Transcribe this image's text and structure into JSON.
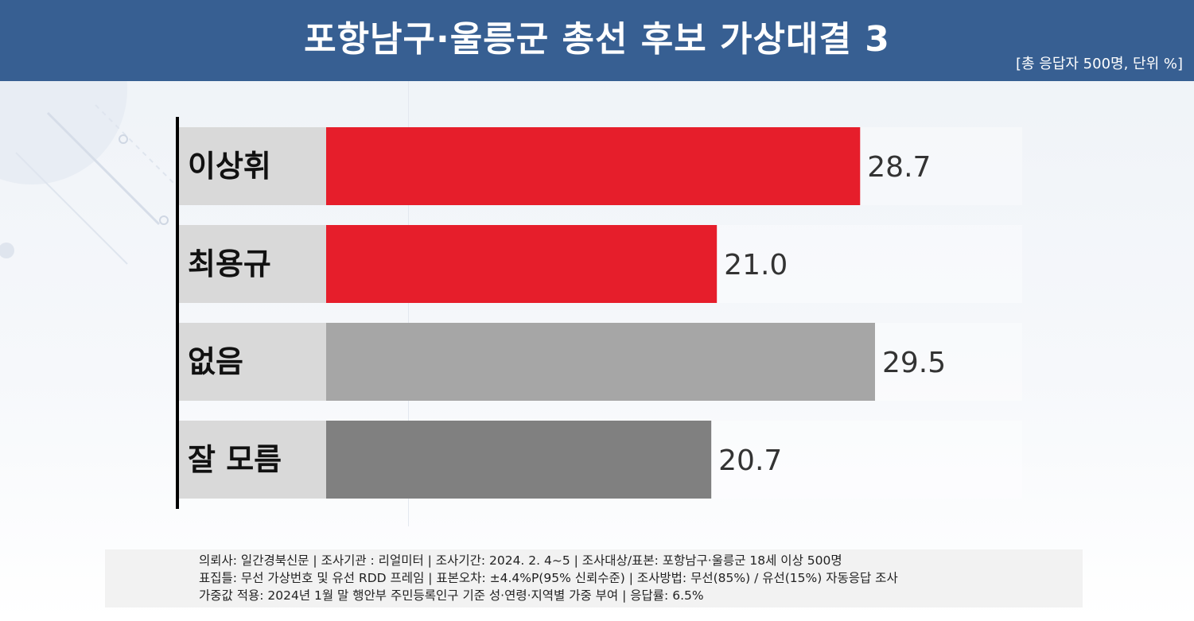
{
  "header": {
    "title": "포항남구·울릉군 총선 후보 가상대결 3",
    "unit": "[총 응답자 500명, 단위 %]"
  },
  "chart_data": {
    "type": "bar",
    "orientation": "horizontal",
    "title": "포항남구·울릉군 총선 후보 가상대결 3",
    "categories": [
      "이상휘",
      "최용규",
      "없음",
      "잘 모름"
    ],
    "values": [
      28.7,
      21.0,
      29.5,
      20.7
    ],
    "value_labels": [
      "28.7",
      "21.0",
      "29.5",
      "20.7"
    ],
    "colors": [
      "#e61e2b",
      "#e61e2b",
      "#a6a6a6",
      "#808080"
    ],
    "xlim": [
      0,
      29.5
    ],
    "grid": false,
    "legend": "none"
  },
  "notes": {
    "line1": "의뢰사: 일간경북신문 | 조사기관 : 리얼미터  |  조사기간: 2024. 2. 4~5 | 조사대상/표본: 포항남구·울릉군 18세 이상 500명",
    "line2": "표집틀: 무선 가상번호 및 유선 RDD 프레임 | 표본오차: ±4.4%P(95% 신뢰수준) | 조사방법: 무선(85%) / 유선(15%) 자동응답 조사",
    "line3": "가중값 적용: 2024년 1월 말 행안부 주민등록인구 기준 성·연령·지역별 가중 부여 | 응답률: 6.5%"
  }
}
